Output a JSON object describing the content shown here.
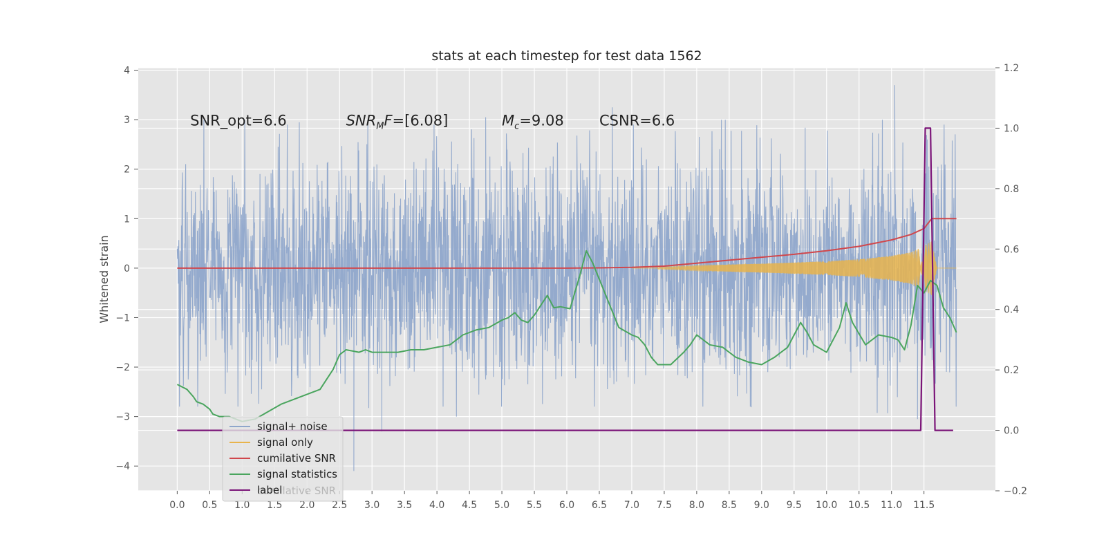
{
  "chart_data": {
    "type": "line",
    "title": "stats at each timestep for test data 1562",
    "xlabel": "",
    "ylabel": "Whitened strain",
    "xlim": [
      -0.6,
      12.6
    ],
    "ylim": [
      -4.5,
      4.05
    ],
    "ylim_right": [
      -0.2,
      1.2
    ],
    "x_ticks": [
      0.0,
      0.5,
      1.0,
      1.5,
      2.0,
      2.5,
      3.0,
      3.5,
      4.0,
      4.5,
      5.0,
      5.5,
      6.0,
      6.5,
      7.0,
      7.5,
      8.0,
      8.5,
      9.0,
      9.5,
      10.0,
      10.5,
      11.0,
      11.5
    ],
    "x_tick_labels": [
      "0.0",
      "0.5",
      "1.0",
      "1.5",
      "2.0",
      "2.5",
      "3.0",
      "3.5",
      "4.0",
      "4.5",
      "5.0",
      "5.5",
      "6.0",
      "6.5",
      "7.0",
      "7.5",
      "8.0",
      "8.5",
      "9.0",
      "9.5",
      "10.0",
      "10.5",
      "11.0",
      "11.5"
    ],
    "y_ticks": [
      4,
      3,
      2,
      1,
      0,
      -1,
      -2,
      -3,
      -4
    ],
    "y_tick_labels": [
      "4",
      "3",
      "2",
      "1",
      "0",
      "−1",
      "−2",
      "−3",
      "−4"
    ],
    "y_right_ticks": [
      1.2,
      1.0,
      0.8,
      0.6,
      0.4,
      0.2,
      0.0,
      -0.2
    ],
    "y_right_tick_labels": [
      "1.2",
      "1.0",
      "0.8",
      "0.6",
      "0.4",
      "0.2",
      "0.0",
      "−0.2"
    ],
    "grid": true,
    "legend_position": "lower-left",
    "annotations": [
      {
        "prefix": "SNR_opt=6.6",
        "at": [
          0.2,
          2.88
        ]
      },
      {
        "prefix": "SNR",
        "sub": "M",
        "suffix": "F=[6.08]",
        "italic": true,
        "at": [
          2.6,
          2.88
        ]
      },
      {
        "prefix": "M",
        "sub": "c",
        "suffix": "=9.08",
        "italic": true,
        "at": [
          5.0,
          2.88
        ]
      },
      {
        "prefix": "CSNR=6.6",
        "at": [
          6.5,
          2.88
        ]
      }
    ],
    "series": [
      {
        "name": "signal+ noise",
        "color": "#8fa6cb",
        "axis": "left",
        "style": "noise",
        "x_range": [
          0.0,
          12.0
        ],
        "typical_amplitude": 1.3,
        "extreme_points": [
          {
            "x": 2.72,
            "y": -4.1
          },
          {
            "x": 3.15,
            "y": -3.3
          },
          {
            "x": 4.75,
            "y": 3.05
          },
          {
            "x": 6.7,
            "y": 3.25
          },
          {
            "x": 11.05,
            "y": 3.7
          },
          {
            "x": 11.55,
            "y": 2.6
          },
          {
            "x": 11.4,
            "y": -3.05
          }
        ]
      },
      {
        "name": "signal only",
        "color": "#e8b44c",
        "axis": "left",
        "style": "chirp",
        "envelope_x": [
          7.4,
          8.0,
          9.0,
          10.0,
          10.5,
          11.0,
          11.3,
          11.5,
          11.62,
          11.7
        ],
        "envelope_y": [
          0.02,
          0.05,
          0.09,
          0.14,
          0.18,
          0.25,
          0.32,
          0.45,
          0.55,
          0.0
        ]
      },
      {
        "name": "cumilative SNR",
        "color": "#d0474c",
        "axis": "left",
        "x": [
          0.0,
          1.0,
          2.0,
          3.0,
          4.0,
          5.0,
          6.0,
          6.5,
          7.0,
          7.5,
          8.0,
          8.5,
          9.0,
          9.5,
          10.0,
          10.5,
          11.0,
          11.3,
          11.5,
          11.62,
          11.8,
          12.0
        ],
        "y": [
          0.0,
          0.0,
          0.0,
          0.0,
          0.0,
          0.0,
          0.0,
          0.005,
          0.015,
          0.04,
          0.1,
          0.16,
          0.22,
          0.28,
          0.35,
          0.44,
          0.57,
          0.68,
          0.8,
          1.0,
          1.0,
          1.0
        ]
      },
      {
        "name": "signal statistics",
        "color": "#4aa55e",
        "axis": "left",
        "x": [
          0.0,
          0.15,
          0.25,
          0.3,
          0.4,
          0.5,
          0.55,
          0.65,
          0.8,
          1.0,
          1.2,
          1.4,
          1.6,
          1.8,
          2.0,
          2.2,
          2.4,
          2.5,
          2.6,
          2.8,
          2.9,
          3.0,
          3.2,
          3.4,
          3.6,
          3.8,
          4.0,
          4.2,
          4.4,
          4.6,
          4.8,
          5.0,
          5.1,
          5.2,
          5.3,
          5.4,
          5.5,
          5.6,
          5.7,
          5.8,
          5.9,
          6.05,
          6.2,
          6.3,
          6.4,
          6.6,
          6.8,
          7.0,
          7.1,
          7.2,
          7.3,
          7.4,
          7.6,
          7.8,
          7.9,
          8.0,
          8.2,
          8.4,
          8.6,
          8.8,
          9.0,
          9.2,
          9.4,
          9.5,
          9.6,
          9.7,
          9.8,
          10.0,
          10.2,
          10.3,
          10.4,
          10.6,
          10.8,
          11.0,
          11.1,
          11.2,
          11.3,
          11.4,
          11.5,
          11.6,
          11.7,
          11.8,
          11.9,
          12.0
        ],
        "y": [
          -2.35,
          -2.45,
          -2.6,
          -2.7,
          -2.75,
          -2.85,
          -2.95,
          -3.0,
          -3.0,
          -3.1,
          -3.05,
          -2.9,
          -2.75,
          -2.65,
          -2.55,
          -2.45,
          -2.05,
          -1.75,
          -1.65,
          -1.7,
          -1.65,
          -1.7,
          -1.7,
          -1.7,
          -1.65,
          -1.65,
          -1.6,
          -1.55,
          -1.35,
          -1.25,
          -1.2,
          -1.05,
          -1.0,
          -0.9,
          -1.05,
          -1.1,
          -0.95,
          -0.75,
          -0.55,
          -0.8,
          -0.78,
          -0.82,
          -0.15,
          0.35,
          0.1,
          -0.55,
          -1.2,
          -1.35,
          -1.4,
          -1.55,
          -1.8,
          -1.95,
          -1.95,
          -1.7,
          -1.55,
          -1.35,
          -1.55,
          -1.6,
          -1.8,
          -1.9,
          -1.95,
          -1.8,
          -1.6,
          -1.35,
          -1.1,
          -1.3,
          -1.55,
          -1.7,
          -1.2,
          -0.7,
          -1.1,
          -1.55,
          -1.35,
          -1.4,
          -1.45,
          -1.65,
          -1.15,
          -0.35,
          -0.5,
          -0.25,
          -0.35,
          -0.8,
          -1.0,
          -1.3
        ]
      },
      {
        "name": "label",
        "color": "#7b1478",
        "axis": "right",
        "x": [
          0.0,
          11.45,
          11.52,
          11.6,
          11.67,
          11.8,
          11.95
        ],
        "y": [
          0.0,
          0.0,
          1.0,
          1.0,
          0.0,
          0.0,
          0.0
        ]
      }
    ],
    "legend_entries": [
      {
        "label": "signal+ noise",
        "color": "#8fa6cb"
      },
      {
        "label": "signal only",
        "color": "#e8b44c"
      },
      {
        "label": "cumilative SNR",
        "color": "#d0474c"
      },
      {
        "label": "signal statistics",
        "color": "#4aa55e"
      },
      {
        "label": "label",
        "color": "#7b1478"
      }
    ],
    "ghost_legend_text": "cumilative SNR"
  }
}
